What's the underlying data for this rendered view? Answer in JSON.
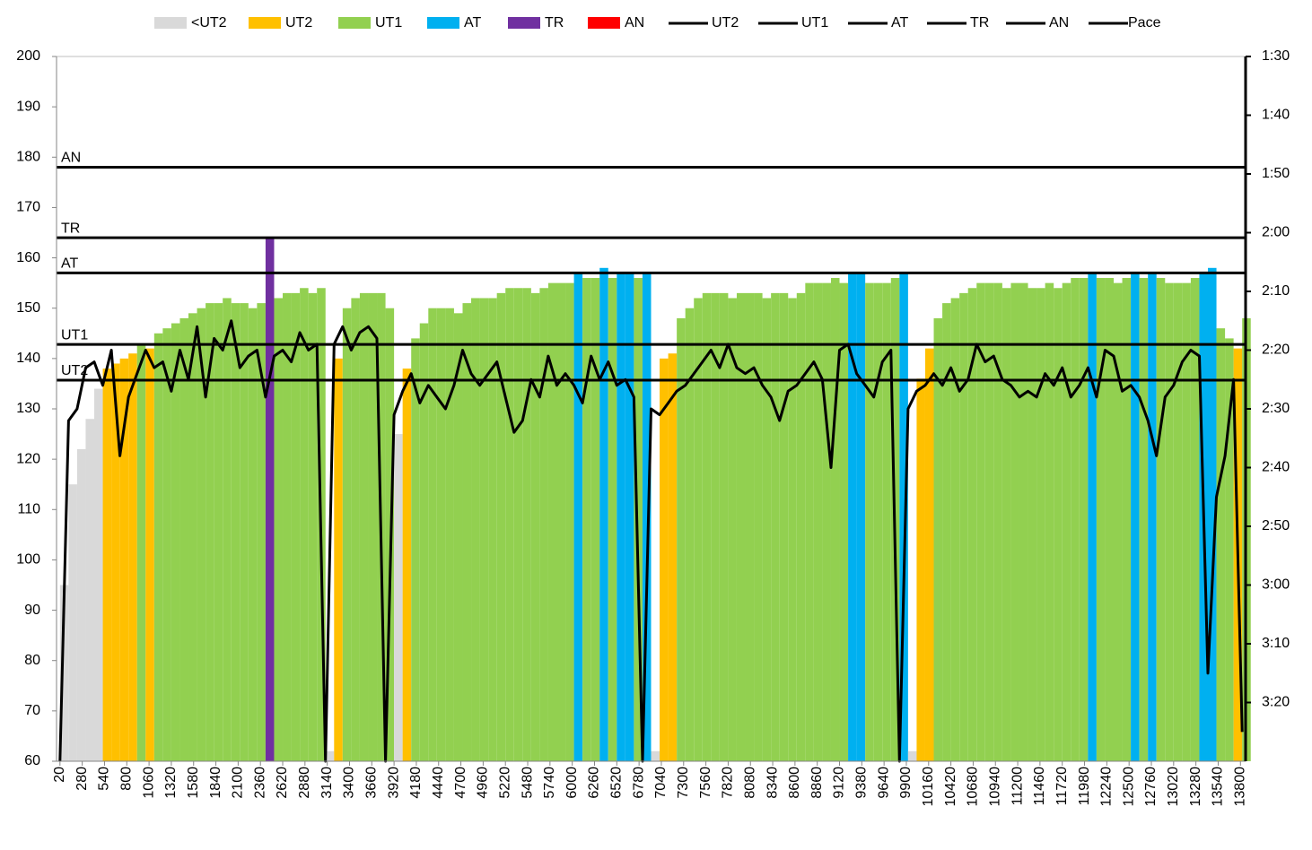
{
  "chart_data": {
    "type": "bar",
    "x": [
      20,
      120,
      220,
      320,
      420,
      520,
      620,
      720,
      820,
      920,
      1020,
      1120,
      1220,
      1320,
      1420,
      1520,
      1620,
      1720,
      1820,
      1920,
      2020,
      2120,
      2220,
      2320,
      2420,
      2520,
      2620,
      2720,
      2820,
      2920,
      3020,
      3120,
      3220,
      3320,
      3420,
      3520,
      3620,
      3720,
      3820,
      3920,
      4020,
      4120,
      4220,
      4320,
      4420,
      4520,
      4620,
      4720,
      4820,
      4920,
      5020,
      5120,
      5220,
      5320,
      5420,
      5520,
      5620,
      5720,
      5820,
      5920,
      6020,
      6120,
      6220,
      6320,
      6420,
      6520,
      6620,
      6720,
      6820,
      6920,
      7020,
      7120,
      7220,
      7320,
      7420,
      7520,
      7620,
      7720,
      7820,
      7920,
      8020,
      8120,
      8220,
      8320,
      8420,
      8520,
      8620,
      8720,
      8820,
      8920,
      9020,
      9120,
      9220,
      9320,
      9420,
      9520,
      9620,
      9720,
      9820,
      9920,
      10020,
      10120,
      10220,
      10320,
      10420,
      10520,
      10620,
      10720,
      10820,
      10920,
      11020,
      11120,
      11220,
      11320,
      11420,
      11520,
      11620,
      11720,
      11820,
      11920,
      12020,
      12120,
      12220,
      12320,
      12420,
      12520,
      12620,
      12720,
      12820,
      12920,
      13020,
      13120,
      13220,
      13320,
      13420,
      13520,
      13620,
      13720,
      13820
    ],
    "values": [
      95,
      115,
      122,
      128,
      134,
      138,
      139,
      140,
      141,
      143,
      142,
      145,
      146,
      147,
      148,
      149,
      150,
      151,
      151,
      152,
      151,
      151,
      150,
      151,
      164,
      152,
      153,
      153,
      154,
      153,
      154,
      62,
      140,
      150,
      152,
      153,
      153,
      153,
      150,
      125,
      138,
      144,
      147,
      150,
      150,
      150,
      149,
      151,
      152,
      152,
      152,
      153,
      154,
      154,
      154,
      153,
      154,
      155,
      155,
      155,
      157,
      156,
      156,
      158,
      156,
      157,
      157,
      156,
      157,
      62,
      140,
      141,
      148,
      150,
      152,
      153,
      153,
      153,
      152,
      153,
      153,
      153,
      152,
      153,
      153,
      152,
      153,
      155,
      155,
      155,
      156,
      155,
      157,
      157,
      155,
      155,
      155,
      156,
      157,
      62,
      136,
      142,
      148,
      151,
      152,
      153,
      154,
      155,
      155,
      155,
      154,
      155,
      155,
      154,
      154,
      155,
      154,
      155,
      156,
      156,
      157,
      156,
      156,
      155,
      156,
      157,
      156,
      157,
      156,
      155,
      155,
      155,
      156,
      157,
      158,
      146,
      144,
      142,
      148
    ],
    "zones": [
      {
        "name": "<UT2",
        "color": "#d9d9d9"
      },
      {
        "name": "UT2",
        "color": "#ffc000"
      },
      {
        "name": "UT1",
        "color": "#92d050"
      },
      {
        "name": "AT",
        "color": "#00b0f0"
      },
      {
        "name": "TR",
        "color": "#7030a0"
      },
      {
        "name": "AN",
        "color": "#ff0000"
      }
    ],
    "thresholds": [
      {
        "name": "UT2",
        "color": "#000000",
        "value": 135.7
      },
      {
        "name": "UT1",
        "color": "#000000",
        "value": 142.8
      },
      {
        "name": "AT",
        "color": "#000000",
        "value": 157
      },
      {
        "name": "TR",
        "color": "#000000",
        "value": 164
      },
      {
        "name": "AN",
        "color": "#000000",
        "value": 178
      }
    ],
    "pace": {
      "name": "Pace",
      "type": "line",
      "color": "#000000",
      "axis": "y2",
      "values": [
        210,
        152,
        150,
        143,
        142,
        146,
        140,
        158,
        148,
        144,
        140,
        143,
        142,
        147,
        140,
        145,
        136,
        148,
        138,
        140,
        135,
        143,
        141,
        140,
        148,
        141,
        140,
        142,
        137,
        140,
        139,
        210,
        139,
        136,
        140,
        137,
        136,
        138,
        210,
        151,
        147,
        144,
        149,
        146,
        148,
        150,
        146,
        140,
        144,
        146,
        144,
        142,
        148,
        154,
        152,
        145,
        148,
        141,
        146,
        144,
        146,
        149,
        141,
        145,
        142,
        146,
        145,
        148,
        210,
        150,
        151,
        149,
        147,
        146,
        144,
        142,
        140,
        143,
        139,
        143,
        144,
        143,
        146,
        148,
        152,
        147,
        146,
        144,
        142,
        145,
        160,
        140,
        139,
        144,
        146,
        148,
        142,
        140,
        210,
        150,
        147,
        146,
        144,
        146,
        143,
        147,
        145,
        139,
        142,
        141,
        145,
        146,
        148,
        147,
        148,
        144,
        146,
        143,
        148,
        146,
        143,
        148,
        140,
        141,
        147,
        146,
        148,
        152,
        158,
        148,
        146,
        142,
        140,
        141,
        195,
        165,
        158,
        145,
        205
      ]
    },
    "xlim": [
      -20,
      13860
    ],
    "xticks": [
      20,
      280,
      540,
      800,
      1060,
      1320,
      1580,
      1840,
      2100,
      2360,
      2620,
      2880,
      3140,
      3400,
      3660,
      3920,
      4180,
      4440,
      4700,
      4960,
      5220,
      5480,
      5740,
      6000,
      6260,
      6520,
      6780,
      7040,
      7300,
      7560,
      7820,
      8080,
      8340,
      8600,
      8860,
      9120,
      9380,
      9640,
      9900,
      10160,
      10420,
      10680,
      10940,
      11200,
      11460,
      11720,
      11980,
      12240,
      12500,
      12760,
      13020,
      13280,
      13540,
      13800
    ],
    "ylim": [
      60,
      200
    ],
    "yticks": [
      60,
      70,
      80,
      90,
      100,
      110,
      120,
      130,
      140,
      150,
      160,
      170,
      180,
      190,
      200
    ],
    "y2lim": [
      210,
      90
    ],
    "y2ticks": [
      {
        "value": 90,
        "label": "1:30"
      },
      {
        "value": 100,
        "label": "1:40"
      },
      {
        "value": 110,
        "label": "1:50"
      },
      {
        "value": 120,
        "label": "2:00"
      },
      {
        "value": 130,
        "label": "2:10"
      },
      {
        "value": 140,
        "label": "2:20"
      },
      {
        "value": 150,
        "label": "2:30"
      },
      {
        "value": 160,
        "label": "2:40"
      },
      {
        "value": 170,
        "label": "2:50"
      },
      {
        "value": 180,
        "label": "3:00"
      },
      {
        "value": 190,
        "label": "3:10"
      },
      {
        "value": 200,
        "label": "3:20"
      }
    ],
    "grid": false
  }
}
